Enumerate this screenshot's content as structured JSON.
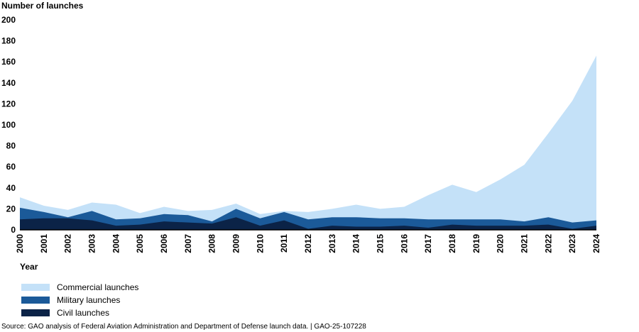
{
  "chart_data": {
    "type": "area",
    "stacked": true,
    "ylabel": "Number of launches",
    "xlabel": "Year",
    "ylim": [
      0,
      200
    ],
    "yticks": [
      0,
      20,
      40,
      60,
      80,
      100,
      120,
      140,
      160,
      180,
      200
    ],
    "categories": [
      "2000",
      "2001",
      "2002",
      "2003",
      "2004",
      "2005",
      "2006",
      "2007",
      "2008",
      "2009",
      "2010",
      "2011",
      "2012",
      "2013",
      "2014",
      "2015",
      "2016",
      "2017",
      "2018",
      "2019",
      "2020",
      "2021",
      "2022",
      "2023",
      "2024"
    ],
    "series": [
      {
        "name": "Civil launches",
        "color": "#0b2347",
        "values": [
          10,
          11,
          11,
          9,
          4,
          5,
          8,
          7,
          6,
          12,
          4,
          9,
          1,
          4,
          3,
          3,
          4,
          2,
          5,
          4,
          4,
          4,
          5,
          1,
          4
        ]
      },
      {
        "name": "Military launches",
        "color": "#1b5a99",
        "values": [
          11,
          6,
          1,
          9,
          6,
          6,
          7,
          7,
          2,
          8,
          7,
          8,
          9,
          8,
          9,
          8,
          7,
          8,
          5,
          6,
          6,
          4,
          7,
          6,
          5
        ]
      },
      {
        "name": "Commercial launches",
        "color": "#c4e1f8",
        "values": [
          10,
          6,
          7,
          8,
          14,
          5,
          7,
          4,
          11,
          5,
          4,
          1,
          7,
          8,
          12,
          9,
          11,
          23,
          33,
          26,
          38,
          54,
          80,
          116,
          157
        ]
      }
    ],
    "legend_order": [
      "Commercial launches",
      "Military launches",
      "Civil launches"
    ],
    "legend_position": "bottom-left",
    "grid": false
  },
  "source": "Source: GAO analysis of Federal Aviation Administration and Department of Defense launch data.  |  GAO-25-107228"
}
